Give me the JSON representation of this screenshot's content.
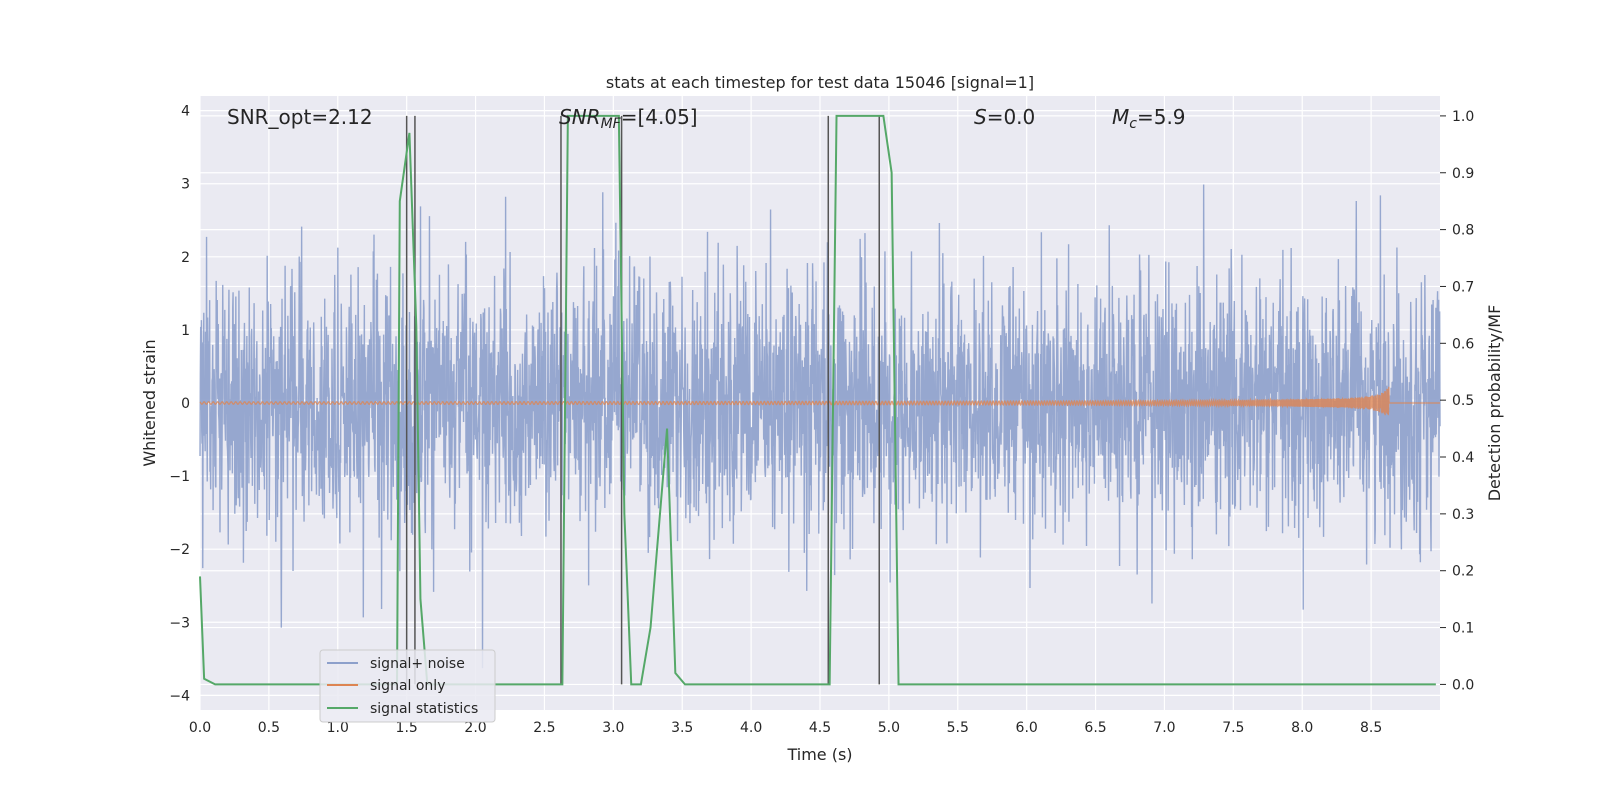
{
  "chart_data": {
    "type": "line",
    "title": "stats at each timestep for test data 15046 [signal=1]",
    "xlabel": "Time (s)",
    "ylabel": "Whitened strain",
    "ylabel_right": "Detection probability/MF",
    "xlim": [
      0,
      9
    ],
    "ylim_left": [
      -4.2,
      4.2
    ],
    "ylim_right": [
      -0.045,
      1.035
    ],
    "x_ticks": [
      "0.0",
      "0.5",
      "1.0",
      "1.5",
      "2.0",
      "2.5",
      "3.0",
      "3.5",
      "4.0",
      "4.5",
      "5.0",
      "5.5",
      "6.0",
      "6.5",
      "7.0",
      "7.5",
      "8.0",
      "8.5"
    ],
    "y_ticks_left": [
      "4",
      "3",
      "2",
      "1",
      "0",
      "−1",
      "−2",
      "−3",
      "−4"
    ],
    "y_ticks_right": [
      "1.0",
      "0.9",
      "0.8",
      "0.7",
      "0.6",
      "0.5",
      "0.4",
      "0.3",
      "0.2",
      "0.1",
      "0.0"
    ],
    "grid": true,
    "legend_position": "lower-left",
    "colors": {
      "noise": "#8da0cb",
      "signal": "#dd8452",
      "stats": "#55a868",
      "vline": "#555555",
      "axes_bg": "#eaeaf2",
      "grid": "#ffffff"
    },
    "annotations": {
      "snr_opt": "SNR_opt=2.12",
      "snr_mf_main": "SNR",
      "snr_mf_sub": "MF",
      "snr_mf_val": "=[4.05]",
      "s_main": "S",
      "s_val": "=0.0",
      "mc_main": "M",
      "mc_sub": "c",
      "mc_val": "=5.9"
    },
    "series": [
      {
        "name": "signal+ noise",
        "axis": "left",
        "kind": "noise",
        "envelope_sigma": 0.85,
        "peak_abs": 3.75
      },
      {
        "name": "signal only",
        "axis": "left",
        "kind": "chirp",
        "amplitude_end": 0.25,
        "end_time": 8.63
      },
      {
        "name": "signal statistics",
        "axis": "right",
        "x": [
          0.0,
          0.03,
          0.11,
          0.9,
          1.43,
          1.45,
          1.52,
          1.57,
          1.6,
          1.65,
          1.68,
          2.57,
          2.63,
          2.67,
          3.04,
          3.08,
          3.13,
          3.2,
          3.27,
          3.39,
          3.45,
          3.52,
          4.5,
          4.57,
          4.62,
          4.96,
          5.02,
          5.07,
          5.1,
          8.97
        ],
        "y": [
          0.19,
          0.01,
          0.0,
          0.0,
          0.0,
          0.85,
          0.97,
          0.63,
          0.15,
          0.0,
          0.0,
          0.0,
          0.0,
          1.0,
          1.0,
          0.3,
          0.0,
          0.0,
          0.1,
          0.45,
          0.02,
          0.0,
          0.0,
          0.0,
          1.0,
          1.0,
          0.9,
          0.0,
          0.0,
          0.0
        ]
      }
    ],
    "vlines": [
      1.5,
      1.56,
      2.62,
      3.06,
      4.56,
      4.93
    ],
    "vline_ylim": [
      0.0,
      1.0
    ]
  }
}
